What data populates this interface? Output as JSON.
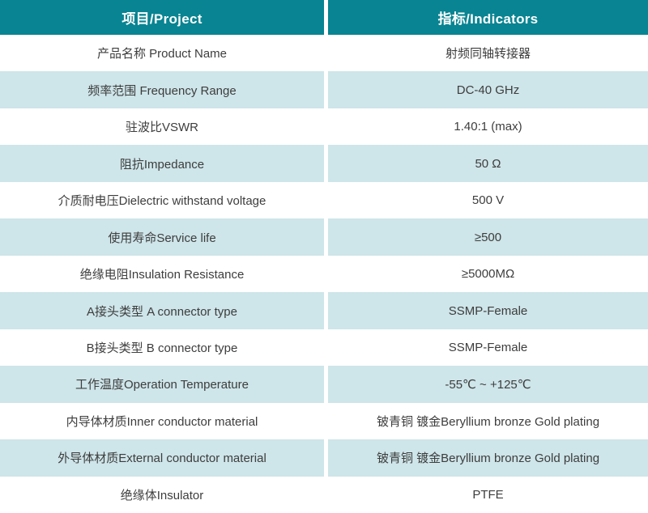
{
  "table": {
    "header": {
      "project": "项目/Project",
      "indicators": "指标/Indicators"
    },
    "rows": [
      {
        "project": "产品名称 Product Name",
        "indicator": "射频同轴转接器"
      },
      {
        "project": "频率范围 Frequency Range",
        "indicator": "DC-40 GHz"
      },
      {
        "project": "驻波比VSWR",
        "indicator": "1.40:1 (max)"
      },
      {
        "project": "阻抗Impedance",
        "indicator": "50 Ω"
      },
      {
        "project": "介质耐电压Dielectric withstand voltage",
        "indicator": "500 V"
      },
      {
        "project": "使用寿命Service life",
        "indicator": "≥500"
      },
      {
        "project": "绝缘电阻Insulation Resistance",
        "indicator": "≥5000MΩ"
      },
      {
        "project": "A接头类型 A connector type",
        "indicator": "SSMP-Female"
      },
      {
        "project": "B接头类型 B connector type",
        "indicator": "SSMP-Female"
      },
      {
        "project": "工作温度Operation Temperature",
        "indicator": "-55℃ ~ +125℃"
      },
      {
        "project": "内导体材质Inner conductor material",
        "indicator": "铍青铜 镀金Beryllium bronze Gold plating"
      },
      {
        "project": "外导体材质External conductor material",
        "indicator": "铍青铜 镀金Beryllium bronze Gold plating"
      },
      {
        "project": "绝缘体Insulator",
        "indicator": "PTFE"
      }
    ]
  },
  "colors": {
    "header_bg": "#088492",
    "header_text": "#ffffff",
    "row_bg": "#ffffff",
    "row_alt_bg": "#cee5e9",
    "body_text": "#3d3d3d",
    "divider": "#ffffff"
  }
}
